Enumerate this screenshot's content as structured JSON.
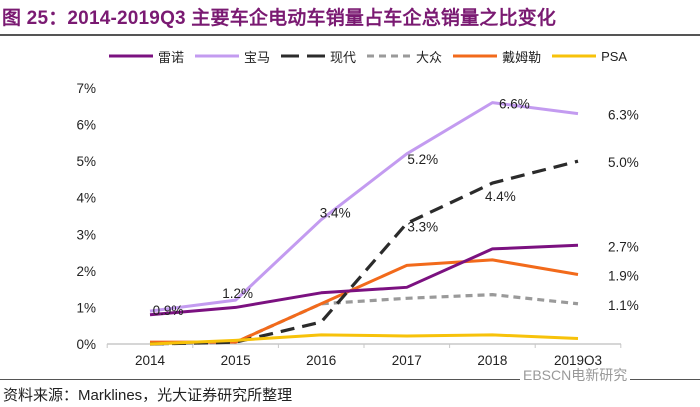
{
  "title": "图 25：2014-2019Q3 主要车企电动车销量占车企总销量之比变化",
  "source": "资料来源：Marklines，光大证券研究所整理",
  "watermark": "EBSCN电新研究",
  "chart_data": {
    "type": "line",
    "title": "2014-2019Q3 主要车企电动车销量占车企总销量之比变化",
    "xlabel": "",
    "ylabel": "",
    "categories": [
      "2014",
      "2015",
      "2016",
      "2017",
      "2018",
      "2019Q3"
    ],
    "ylim": [
      0,
      7
    ],
    "yticks": [
      "0%",
      "1%",
      "2%",
      "3%",
      "4%",
      "5%",
      "6%",
      "7%"
    ],
    "grid": false,
    "legend": "top",
    "series": [
      {
        "name": "雷诺",
        "color": "#7b1180",
        "dash": "solid",
        "values": [
          0.8,
          1.0,
          1.4,
          1.55,
          2.6,
          2.7
        ]
      },
      {
        "name": "宝马",
        "color": "#c39bf0",
        "dash": "solid",
        "values": [
          0.9,
          1.2,
          3.4,
          5.2,
          6.6,
          6.3
        ]
      },
      {
        "name": "现代",
        "color": "#2b2b2b",
        "dash": "long",
        "values": [
          0.0,
          0.05,
          0.6,
          3.3,
          4.4,
          5.0
        ]
      },
      {
        "name": "大众",
        "color": "#9a9a9a",
        "dash": "short",
        "values": [
          0.0,
          0.05,
          1.1,
          1.25,
          1.35,
          1.1
        ]
      },
      {
        "name": "戴姆勒",
        "color": "#f26a1b",
        "dash": "solid",
        "values": [
          0.05,
          0.05,
          1.1,
          2.15,
          2.3,
          1.9
        ]
      },
      {
        "name": "PSA",
        "color": "#f7c20a",
        "dash": "solid",
        "values": [
          0.0,
          0.1,
          0.25,
          0.22,
          0.25,
          0.15
        ]
      }
    ],
    "annotations": [
      {
        "text": "0.9%",
        "series": "宝马",
        "index": 0
      },
      {
        "text": "1.2%",
        "series": "宝马",
        "index": 1
      },
      {
        "text": "3.4%",
        "series": "宝马",
        "index": 2
      },
      {
        "text": "5.2%",
        "series": "宝马",
        "index": 3
      },
      {
        "text": "6.6%",
        "series": "宝马",
        "index": 4
      },
      {
        "text": "6.3%",
        "series": "宝马",
        "index": 5
      },
      {
        "text": "3.3%",
        "series": "现代",
        "index": 3
      },
      {
        "text": "4.4%",
        "series": "现代",
        "index": 4
      },
      {
        "text": "5.0%",
        "series": "现代",
        "index": 5
      },
      {
        "text": "2.7%",
        "series": "雷诺",
        "index": 5
      },
      {
        "text": "1.9%",
        "series": "戴姆勒",
        "index": 5
      },
      {
        "text": "1.1%",
        "series": "大众",
        "index": 5
      }
    ]
  }
}
